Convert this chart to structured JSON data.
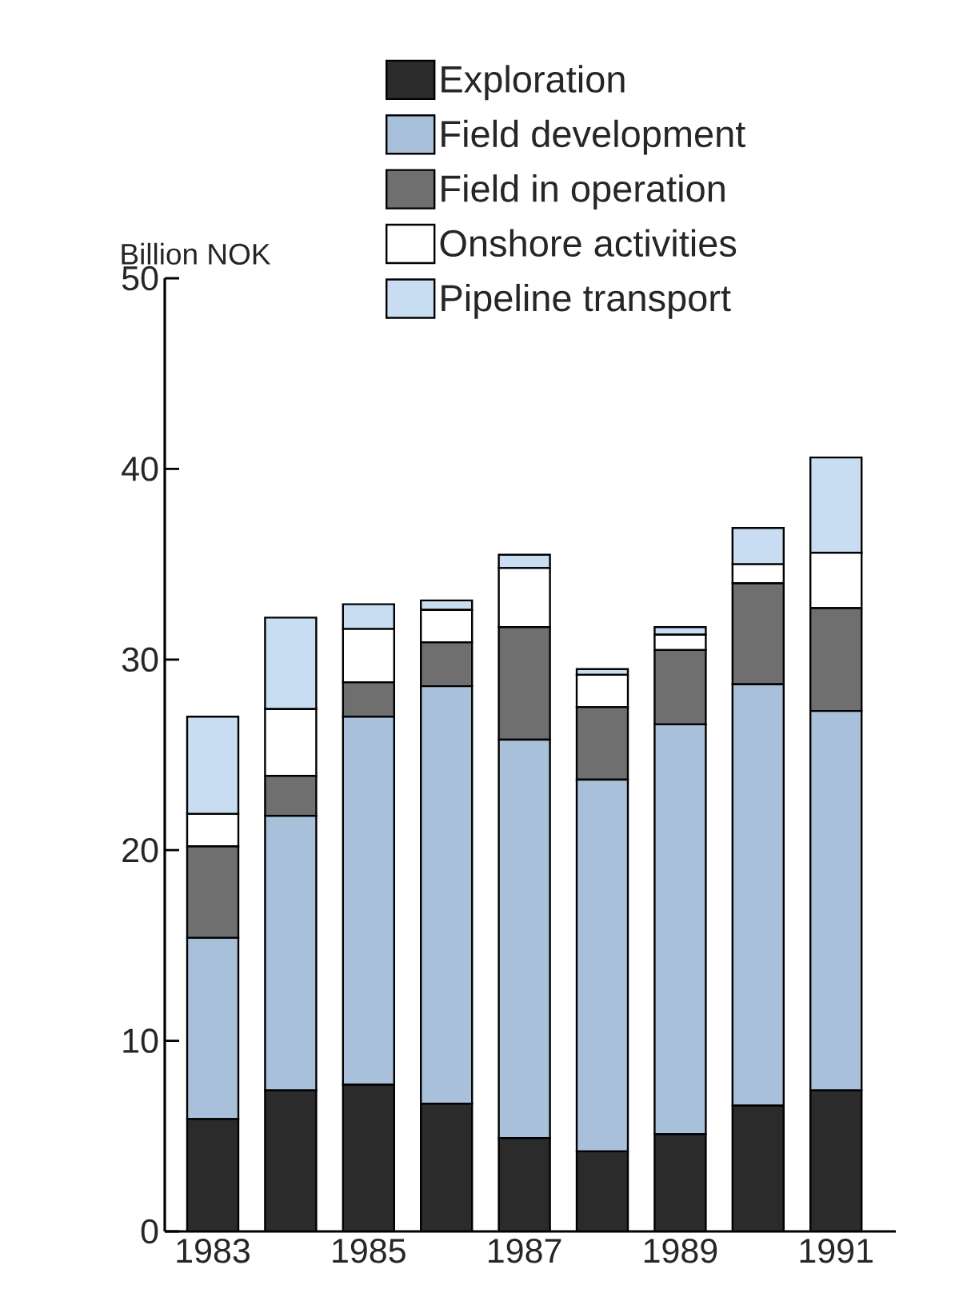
{
  "chart_data": {
    "type": "bar",
    "stacked": true,
    "ylabel": "Billion NOK",
    "legend": "top",
    "categories": [
      "1983",
      null,
      "1985",
      null,
      "1987",
      null,
      "1989",
      null,
      "1991"
    ],
    "ylim": [
      0,
      50
    ],
    "yticks": [
      0,
      10,
      20,
      30,
      40,
      50
    ],
    "series": [
      {
        "name": "Exploration",
        "color": "#2b2b2b",
        "values": [
          5.9,
          7.4,
          7.7,
          6.7,
          4.9,
          4.2,
          5.1,
          6.6,
          7.4
        ]
      },
      {
        "name": "Field development",
        "color": "#a9c0da",
        "values": [
          9.5,
          14.4,
          19.3,
          21.9,
          20.9,
          19.5,
          21.5,
          22.1,
          19.9
        ]
      },
      {
        "name": "Field in operation",
        "color": "#6f6f6f",
        "values": [
          4.8,
          2.1,
          1.8,
          2.3,
          5.9,
          3.8,
          3.9,
          5.3,
          5.4
        ]
      },
      {
        "name": "Onshore activities",
        "color": "#ffffff",
        "values": [
          1.7,
          3.5,
          2.8,
          1.7,
          3.1,
          1.7,
          0.8,
          1.0,
          2.9
        ]
      },
      {
        "name": "Pipeline transport",
        "color": "#c9ddf2",
        "values": [
          5.1,
          4.8,
          1.3,
          0.5,
          0.7,
          0.3,
          0.4,
          1.9,
          5.0
        ]
      }
    ]
  }
}
